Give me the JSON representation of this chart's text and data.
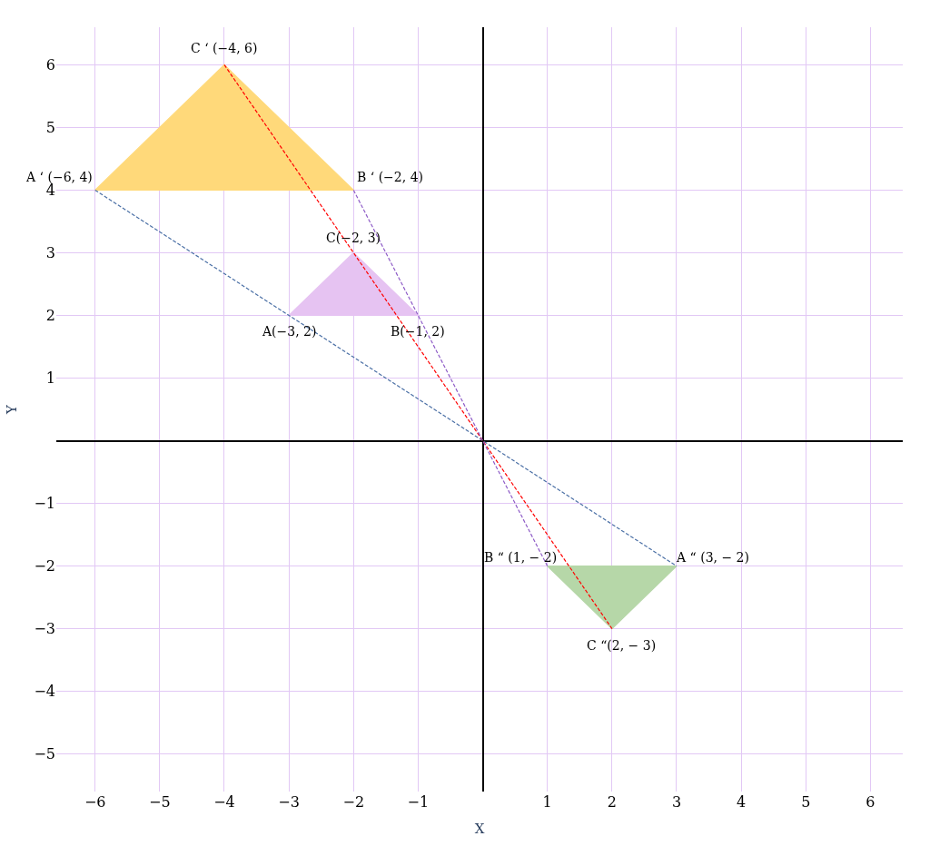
{
  "chart_data": {
    "type": "line",
    "xlabel": "X",
    "ylabel": "Y",
    "xlim": [
      -6.6,
      6.5
    ],
    "ylim": [
      -5.6,
      6.6
    ],
    "xticks": [
      -6,
      -5,
      -4,
      -3,
      -2,
      -1,
      1,
      2,
      3,
      4,
      5,
      6
    ],
    "yticks": [
      -5,
      -4,
      -3,
      -2,
      -1,
      1,
      2,
      3,
      4,
      5,
      6
    ],
    "grid": true,
    "marker": "none",
    "series": [
      {
        "type": "area",
        "color": "#ffd97a",
        "x": [
          -6,
          -2,
          -4,
          -6
        ],
        "values": [
          4,
          4,
          6,
          4
        ]
      },
      {
        "type": "area",
        "color": "#e6c3f2",
        "x": [
          -3,
          -1,
          -2,
          -3
        ],
        "values": [
          2,
          2,
          3,
          2
        ]
      },
      {
        "type": "area",
        "color": "#b6d7a8",
        "x": [
          3,
          1,
          2,
          3
        ],
        "values": [
          -2,
          -2,
          -3,
          -2
        ]
      },
      {
        "line_style": "dashed",
        "color": "#4a6fa5",
        "x": [
          -6,
          3
        ],
        "values": [
          4,
          -2
        ]
      },
      {
        "line_style": "dashed",
        "color": "#ff0000",
        "x": [
          -4,
          2
        ],
        "values": [
          6,
          -3
        ]
      },
      {
        "line_style": "dashed",
        "color": "#8e5cc7",
        "x": [
          -2,
          1
        ],
        "values": [
          4,
          -2
        ]
      }
    ],
    "annotations": [
      {
        "text": "C ‘ (−4, 6)",
        "x": -4,
        "y": 6
      },
      {
        "text": "A ‘ (−6, 4)",
        "x": -6,
        "y": 4
      },
      {
        "text": "B ‘ (−2, 4)",
        "x": -2,
        "y": 4
      },
      {
        "text": "C(−2, 3)",
        "x": -2,
        "y": 3
      },
      {
        "text": "A(−3, 2)",
        "x": -3,
        "y": 2
      },
      {
        "text": "B(−1, 2)",
        "x": -1,
        "y": 2
      },
      {
        "text": "B “ (1, − 2)",
        "x": 1,
        "y": -2
      },
      {
        "text": "A “ (3, − 2)",
        "x": 3,
        "y": -2
      },
      {
        "text": "C “(2, − 3)",
        "x": 2,
        "y": -3
      }
    ]
  }
}
